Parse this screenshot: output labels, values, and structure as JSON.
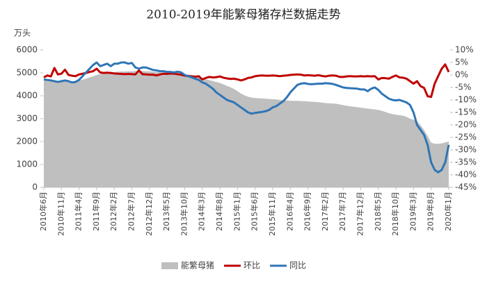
{
  "chart_data": {
    "type": "combo",
    "title": "2010-2019年能繁母猪存栏数据走势",
    "y_label": "万头",
    "categories": [
      "2010年6月",
      null,
      null,
      null,
      null,
      "2010年11月",
      null,
      null,
      null,
      null,
      "2011年4月",
      null,
      null,
      null,
      null,
      "2011年9月",
      null,
      null,
      null,
      null,
      "2012年2月",
      null,
      null,
      null,
      null,
      "2012年7月",
      null,
      null,
      null,
      null,
      "2012年12月",
      null,
      null,
      null,
      null,
      "2013年5月",
      null,
      null,
      null,
      null,
      "2013年10月",
      null,
      null,
      null,
      null,
      "2014年3月",
      null,
      null,
      null,
      null,
      "2014年8月",
      null,
      null,
      null,
      null,
      "2015年1月",
      null,
      null,
      null,
      null,
      "2015年6月",
      null,
      null,
      null,
      null,
      "2015年11月",
      null,
      null,
      null,
      null,
      "2016年4月",
      null,
      null,
      null,
      null,
      "2016年9月",
      null,
      null,
      null,
      null,
      "2017年2月",
      null,
      null,
      null,
      null,
      "2017年7月",
      null,
      null,
      null,
      null,
      "2017年12月",
      null,
      null,
      null,
      null,
      "2018年5月",
      null,
      null,
      null,
      null,
      "2018年10月",
      null,
      null,
      null,
      null,
      "2019年3月",
      null,
      null,
      null,
      null,
      "2019年8月",
      null,
      null,
      null,
      null,
      "2020年1月"
    ],
    "series": [
      {
        "name": "能繁母猪",
        "type": "area",
        "color": "#bfbfbf",
        "values": [
          4700,
          4680,
          4660,
          4650,
          4640,
          4660,
          4650,
          4640,
          4620,
          4630,
          4660,
          4700,
          4750,
          4800,
          4850,
          4900,
          4950,
          4980,
          5000,
          5010,
          5030,
          5050,
          5060,
          5060,
          5070,
          5070,
          5080,
          5080,
          5080,
          5070,
          5070,
          5050,
          5030,
          5020,
          5010,
          5000,
          5000,
          4990,
          4980,
          4960,
          4940,
          4920,
          4900,
          4880,
          4850,
          4780,
          4720,
          4680,
          4640,
          4600,
          4560,
          4500,
          4430,
          4370,
          4300,
          4200,
          4100,
          4020,
          3960,
          3920,
          3900,
          3890,
          3880,
          3870,
          3860,
          3850,
          3840,
          3820,
          3800,
          3790,
          3780,
          3780,
          3780,
          3770,
          3760,
          3750,
          3740,
          3730,
          3720,
          3700,
          3680,
          3670,
          3660,
          3650,
          3620,
          3590,
          3560,
          3540,
          3520,
          3500,
          3480,
          3460,
          3440,
          3420,
          3400,
          3380,
          3340,
          3290,
          3240,
          3200,
          3170,
          3150,
          3130,
          3080,
          3000,
          2950,
          2880,
          2720,
          2500,
          2250,
          1950,
          1900,
          1900,
          1920,
          1960,
          2000
        ]
      },
      {
        "name": "环比",
        "type": "line",
        "axis": "y2",
        "color": "#c00000",
        "values": [
          -1,
          -0.2,
          -0.6,
          2.8,
          0.2,
          0.5,
          2.1,
          0,
          -0.3,
          -0.5,
          0.2,
          0.5,
          0.8,
          1.2,
          1.5,
          2.5,
          1,
          0.8,
          0.9,
          0.8,
          0.6,
          0.5,
          0.4,
          0.3,
          0.4,
          0.3,
          0.2,
          1.8,
          0.3,
          0.2,
          0.1,
          0.1,
          -0.2,
          0.2,
          0.5,
          0.4,
          0.6,
          0.5,
          0.3,
          0.1,
          -0.3,
          -0.4,
          -0.6,
          -0.7,
          -0.5,
          -1.8,
          -1.2,
          -0.8,
          -1.0,
          -0.9,
          -0.6,
          -1.1,
          -1.4,
          -1.6,
          -1.5,
          -1.8,
          -2.2,
          -1.8,
          -1.2,
          -1.0,
          -0.5,
          -0.3,
          -0.2,
          -0.3,
          -0.3,
          -0.2,
          -0.3,
          -0.5,
          -0.3,
          -0.2,
          0,
          0.1,
          0.2,
          0.1,
          -0.2,
          -0.1,
          -0.2,
          -0.3,
          -0.1,
          -0.4,
          -0.6,
          -0.3,
          -0.2,
          -0.3,
          -0.8,
          -0.8,
          -0.6,
          -0.5,
          -0.6,
          -0.6,
          -0.5,
          -0.6,
          -0.5,
          -0.6,
          -0.5,
          -1.8,
          -1.2,
          -1.3,
          -1.5,
          -0.8,
          -0.2,
          -1.0,
          -1.1,
          -1.5,
          -2.5,
          -3.5,
          -2.5,
          -4.5,
          -5.2,
          -8.5,
          -8.8,
          -3.5,
          -0.5,
          2.5,
          4.2,
          1.2
        ]
      },
      {
        "name": "同比",
        "type": "line",
        "axis": "y2",
        "color": "#2e75b6",
        "values": [
          -1.8,
          -2,
          -2.2,
          -2.5,
          -2.8,
          -2.5,
          -2.2,
          -2.5,
          -3,
          -2.8,
          -2,
          -0.5,
          1,
          2.5,
          4,
          5,
          3.5,
          4,
          4.5,
          3.5,
          4.5,
          4.5,
          5,
          5,
          4.5,
          4.8,
          3,
          2.5,
          3,
          3,
          2.5,
          2,
          1.8,
          1.5,
          1.5,
          1.2,
          1.2,
          1,
          1.3,
          1,
          0,
          -0.5,
          -1,
          -1.5,
          -2,
          -3,
          -3.5,
          -4.5,
          -5.5,
          -7,
          -8,
          -9,
          -10,
          -10.5,
          -11,
          -12,
          -13,
          -14,
          -15,
          -15.5,
          -15.2,
          -15,
          -14.8,
          -14.5,
          -14,
          -13,
          -12.5,
          -11.5,
          -10.5,
          -9,
          -7,
          -5.5,
          -4,
          -3.5,
          -3.3,
          -3.6,
          -3.7,
          -3.6,
          -3.5,
          -3.5,
          -3.3,
          -3.4,
          -3.6,
          -4,
          -4.5,
          -5,
          -5.2,
          -5.3,
          -5.4,
          -5.5,
          -5.8,
          -5.8,
          -6.5,
          -5.5,
          -5,
          -6,
          -7.5,
          -8.5,
          -9.5,
          -10,
          -10.2,
          -10,
          -10.5,
          -11,
          -12,
          -15,
          -20,
          -22,
          -24,
          -28,
          -35,
          -38,
          -39,
          -38,
          -35,
          -28
        ]
      }
    ],
    "ylim": [
      0,
      6000
    ],
    "yticks": [
      0,
      1000,
      2000,
      3000,
      4000,
      5000,
      6000
    ],
    "y2lim": [
      -45,
      10
    ],
    "y2ticks": [
      {
        "value": 10,
        "label": "10%"
      },
      {
        "value": 5,
        "label": "5%"
      },
      {
        "value": 0,
        "label": "0%"
      },
      {
        "value": -5,
        "label": "-5%"
      },
      {
        "value": -10,
        "label": "-10%"
      },
      {
        "value": -15,
        "label": "-15%"
      },
      {
        "value": -20,
        "label": "-20%"
      },
      {
        "value": -25,
        "label": "-25%"
      },
      {
        "value": -30,
        "label": "-30%"
      },
      {
        "value": -35,
        "label": "-35%"
      },
      {
        "value": -40,
        "label": "-40%"
      },
      {
        "value": -45,
        "label": "-45%"
      }
    ],
    "legend": "bottom",
    "grid": false
  }
}
